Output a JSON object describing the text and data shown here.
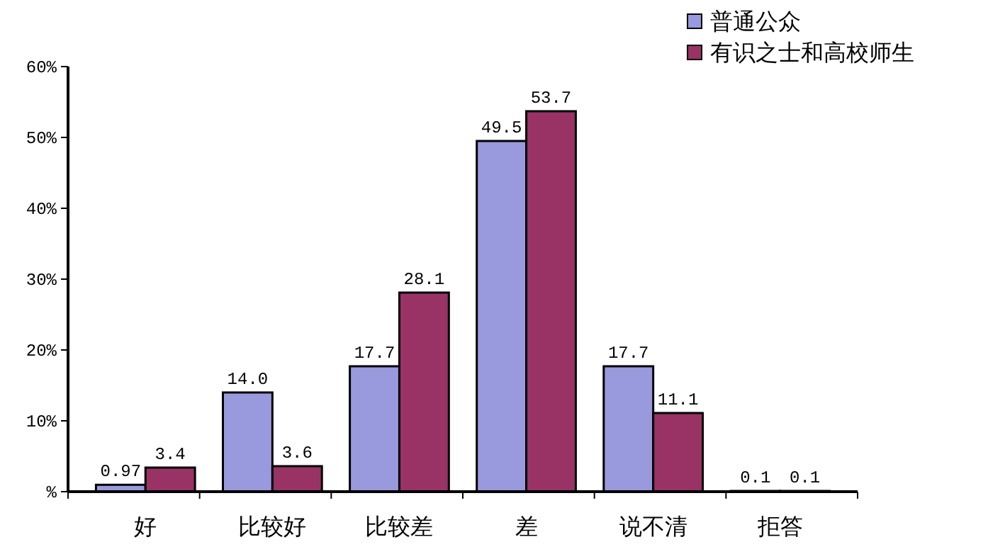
{
  "chart_data": {
    "type": "bar",
    "categories": [
      "好",
      "比较好",
      "比较差",
      "差",
      "说不清",
      "拒答"
    ],
    "series": [
      {
        "name": "普通公众",
        "color": "#9999dd",
        "values": [
          0.97,
          14.0,
          17.7,
          49.5,
          17.7,
          0.1
        ],
        "value_labels": [
          "0.97",
          "14.0",
          "17.7",
          "49.5",
          "17.7",
          "0.1"
        ]
      },
      {
        "name": "有识之士和高校师生",
        "color": "#993366",
        "values": [
          3.4,
          3.6,
          28.1,
          53.7,
          11.1,
          0.1
        ],
        "value_labels": [
          "3.4",
          "3.6",
          "28.1",
          "53.7",
          "11.1",
          "0.1"
        ]
      }
    ],
    "ylim": [
      0,
      60
    ],
    "yticks": [
      {
        "value": 0,
        "label": "%"
      },
      {
        "value": 10,
        "label": "10%"
      },
      {
        "value": 20,
        "label": "20%"
      },
      {
        "value": 30,
        "label": "30%"
      },
      {
        "value": 40,
        "label": "40%"
      },
      {
        "value": 50,
        "label": "50%"
      },
      {
        "value": 60,
        "label": "60%"
      }
    ],
    "grid": false,
    "legend": "top right"
  }
}
